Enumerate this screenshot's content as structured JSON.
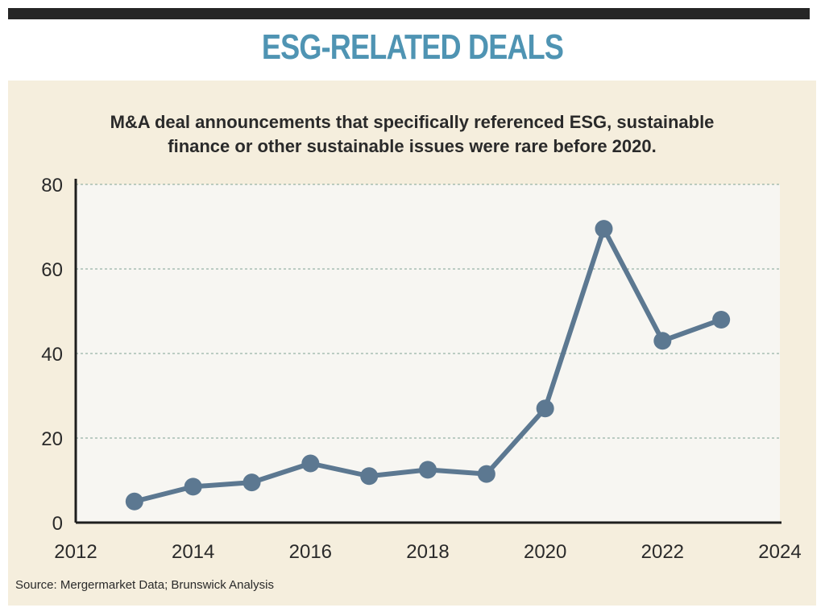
{
  "header": {
    "title": "ESG-RELATED DEALS",
    "subtitle_line1": "M&A deal announcements that specifically referenced ESG, sustainable",
    "subtitle_line2": "finance or other sustainable issues were rare before 2020."
  },
  "source": "Source: Mergermarket Data; Brunswick Analysis",
  "colors": {
    "title": "#4f94b3",
    "panel": "#f5eedd",
    "plot_area": "#f7f6f2",
    "line": "#5c7891",
    "grid": "#7fa394"
  },
  "chart_data": {
    "type": "line",
    "x": [
      2013,
      2014,
      2015,
      2016,
      2017,
      2018,
      2019,
      2020,
      2021,
      2022,
      2023
    ],
    "y": [
      5,
      8.5,
      9.5,
      14,
      11,
      12.5,
      11.5,
      27,
      69.5,
      43,
      48
    ],
    "xlim": [
      2012,
      2024
    ],
    "ylim": [
      0,
      80
    ],
    "xticks": [
      "2012",
      "2014",
      "2016",
      "2018",
      "2020",
      "2022",
      "2024"
    ],
    "yticks": [
      "0",
      "20",
      "40",
      "60",
      "80"
    ],
    "grid": "horizontal dashed",
    "legend": "none"
  }
}
